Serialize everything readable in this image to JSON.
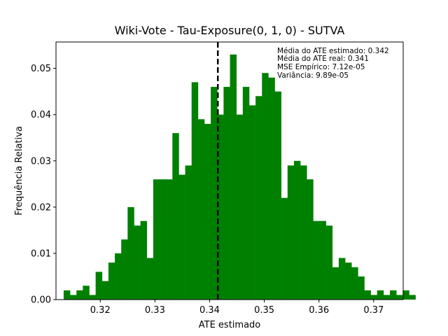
{
  "chart_data": {
    "type": "bar",
    "title": "Wiki-Vote - Tau-Exposure(0, 1, 0) - SUTVA",
    "xlabel": "ATE estimado",
    "ylabel": "Frequência Relativa",
    "xlim": [
      0.3119,
      0.3754
    ],
    "ylim": [
      0.0,
      0.0557
    ],
    "xticks": [
      0.32,
      0.33,
      0.34,
      0.35,
      0.36,
      0.37
    ],
    "xtick_labels": [
      "0.32",
      "0.33",
      "0.34",
      "0.35",
      "0.36",
      "0.37"
    ],
    "yticks": [
      0.0,
      0.01,
      0.02,
      0.03,
      0.04,
      0.05
    ],
    "ytick_labels": [
      "0.00",
      "0.01",
      "0.02",
      "0.03",
      "0.04",
      "0.05"
    ],
    "bins_start": 0.3133,
    "bin_width": 0.00117,
    "values": [
      0.002,
      0.001,
      0.002,
      0.003,
      0.001,
      0.006,
      0.004,
      0.008,
      0.01,
      0.013,
      0.02,
      0.016,
      0.017,
      0.009,
      0.026,
      0.026,
      0.026,
      0.036,
      0.027,
      0.029,
      0.047,
      0.039,
      0.038,
      0.046,
      0.04,
      0.046,
      0.053,
      0.04,
      0.046,
      0.042,
      0.044,
      0.049,
      0.048,
      0.045,
      0.022,
      0.029,
      0.03,
      0.029,
      0.026,
      0.017,
      0.017,
      0.016,
      0.007,
      0.009,
      0.008,
      0.007,
      0.005,
      0.002,
      0.001,
      0.002,
      0.001,
      0.002,
      0.001,
      0.002,
      0.001
    ],
    "bar_color": "#008000",
    "vline": {
      "x": 0.3415,
      "style": "dashed",
      "color": "#000000"
    },
    "annotations": [
      "Média do ATE estimado: 0.342",
      "Média do ATE real: 0.341",
      "MSE Empírico: 7.12e-05",
      "Variância: 9.89e-05"
    ],
    "grid": false
  }
}
